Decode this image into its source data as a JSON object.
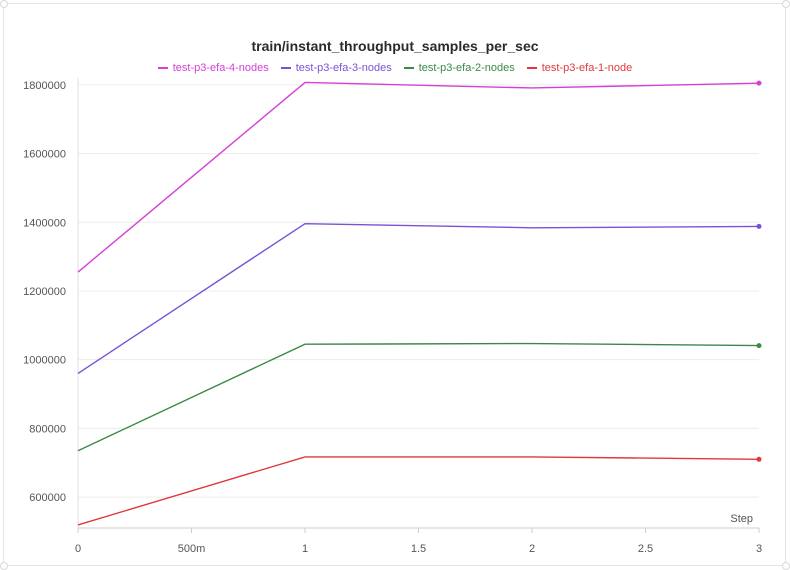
{
  "chart_data": {
    "type": "line",
    "title": "train/instant_throughput_samples_per_sec",
    "xlabel": "Step",
    "ylabel": "",
    "xlim": [
      0,
      3
    ],
    "ylim": [
      510000,
      1820000
    ],
    "x_ticks": [
      0,
      0.5,
      1,
      1.5,
      2,
      2.5,
      3
    ],
    "x_tick_labels": [
      "0",
      "500m",
      "1",
      "1.5",
      "2",
      "2.5",
      "3"
    ],
    "y_ticks": [
      600000,
      800000,
      1000000,
      1200000,
      1400000,
      1600000,
      1800000
    ],
    "y_tick_labels": [
      "600000",
      "800000",
      "1000000",
      "1200000",
      "1400000",
      "1600000",
      "1800000"
    ],
    "grid": true,
    "legend_position": "top-center",
    "x": [
      0,
      1,
      2,
      3
    ],
    "series": [
      {
        "name": "test-p3-efa-4-nodes",
        "color": "#d63fd6",
        "values": [
          1255000,
          1807000,
          1791000,
          1805000
        ]
      },
      {
        "name": "test-p3-efa-3-nodes",
        "color": "#7a52d6",
        "values": [
          960000,
          1396000,
          1384000,
          1388000
        ]
      },
      {
        "name": "test-p3-efa-2-nodes",
        "color": "#3a8a46",
        "values": [
          735000,
          1045000,
          1047000,
          1041000
        ]
      },
      {
        "name": "test-p3-efa-1-node",
        "color": "#e0383e",
        "values": [
          519000,
          717000,
          717000,
          710000
        ]
      }
    ]
  }
}
